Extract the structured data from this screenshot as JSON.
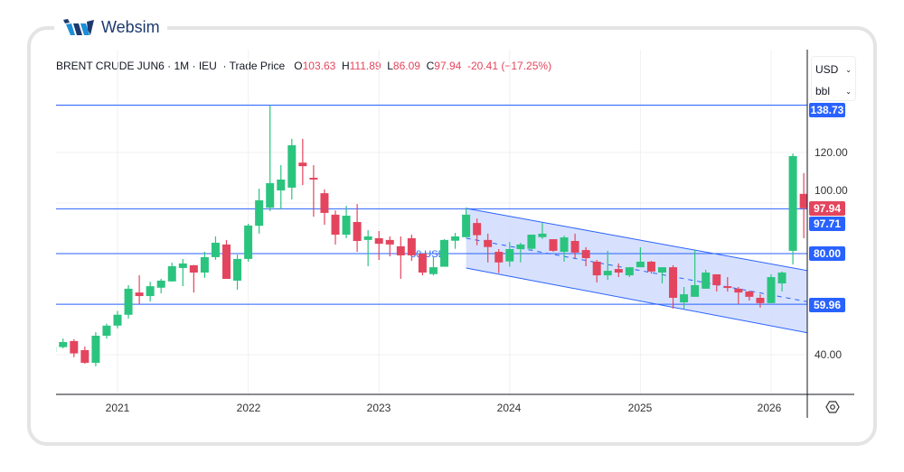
{
  "brand": {
    "name": "Websim"
  },
  "header": {
    "symbol": "BRENT CRUDE JUN6",
    "interval": "1M",
    "exchange": "IEU",
    "price_type": "Trade Price",
    "o_label": "O",
    "o": "103.63",
    "h_label": "H",
    "h": "111.89",
    "l_label": "L",
    "l": "86.09",
    "c_label": "C",
    "c": "97.94",
    "change": "-20.41",
    "change_pct": "(−17.25%)"
  },
  "units": {
    "currency": "USD",
    "unit": "bbl"
  },
  "colors": {
    "up": "#2bc47f",
    "down": "#e4455e",
    "line": "#2962ff",
    "channel_fill": "#d3defd"
  },
  "chart_data": {
    "type": "candlestick",
    "title": "BRENT CRUDE JUN6 · 1M · IEU",
    "ylim": [
      28,
      146
    ],
    "y_ticks": [
      "120.00",
      "100.00",
      "40.00"
    ],
    "x_ticks": [
      "2021",
      "2022",
      "2023",
      "2024",
      "2025",
      "2026"
    ],
    "horizontal_lines": [
      {
        "price": 138.73,
        "label": "138.73"
      },
      {
        "price": 97.71,
        "label": "97.71"
      },
      {
        "price": 80.0,
        "label": "80.00",
        "text": "80 USD"
      },
      {
        "price": 59.96,
        "label": "59.96"
      }
    ],
    "last_price": {
      "price": 97.94,
      "label": "97.94"
    },
    "channel": {
      "start": "2023-09",
      "end": "2026-04",
      "top": [
        97.9,
        73.2
      ],
      "bottom": [
        74.3,
        48.6
      ]
    },
    "candles": [
      [
        "2020-07",
        41.1,
        43.5,
        41.0,
        43.2
      ],
      [
        "2020-08",
        43.0,
        46.4,
        42.5,
        45.0
      ],
      [
        "2020-09",
        45.4,
        46.1,
        39.0,
        40.5
      ],
      [
        "2020-10",
        41.8,
        43.2,
        36.4,
        36.8
      ],
      [
        "2020-11",
        36.8,
        48.9,
        35.4,
        47.5
      ],
      [
        "2020-12",
        47.5,
        52.3,
        46.4,
        51.5
      ],
      [
        "2021-01",
        51.5,
        57.3,
        50.4,
        55.8
      ],
      [
        "2021-02",
        55.8,
        67.5,
        54.3,
        66.1
      ],
      [
        "2021-03",
        64.6,
        71.4,
        60.0,
        63.2
      ],
      [
        "2021-04",
        63.2,
        68.9,
        61.0,
        67.1
      ],
      [
        "2021-05",
        66.5,
        70.0,
        64.3,
        69.3
      ],
      [
        "2021-06",
        69.0,
        76.4,
        68.9,
        75.0
      ],
      [
        "2021-07",
        74.3,
        77.9,
        67.1,
        76.1
      ],
      [
        "2021-08",
        75.4,
        75.5,
        64.6,
        72.5
      ],
      [
        "2021-09",
        72.5,
        80.7,
        70.4,
        78.6
      ],
      [
        "2021-10",
        78.6,
        86.8,
        77.5,
        84.3
      ],
      [
        "2021-11",
        83.6,
        85.4,
        70.0,
        70.0
      ],
      [
        "2021-12",
        69.3,
        79.6,
        65.7,
        77.9
      ],
      [
        "2022-01",
        77.9,
        91.8,
        76.8,
        91.1
      ],
      [
        "2022-02",
        91.0,
        105.7,
        87.9,
        101.1
      ],
      [
        "2022-03",
        98.2,
        138.73,
        96.8,
        107.9
      ],
      [
        "2022-04",
        105.0,
        115.0,
        97.5,
        109.3
      ],
      [
        "2022-05",
        106.1,
        125.4,
        101.4,
        122.9
      ],
      [
        "2022-06",
        116.0,
        125.4,
        107.1,
        114.6
      ],
      [
        "2022-07",
        110.0,
        115.0,
        94.6,
        109.3
      ],
      [
        "2022-08",
        103.9,
        105.4,
        91.4,
        96.1
      ],
      [
        "2022-09",
        95.4,
        97.1,
        83.6,
        87.5
      ],
      [
        "2022-10",
        87.5,
        98.9,
        86.1,
        95.0
      ],
      [
        "2022-11",
        92.5,
        99.6,
        80.7,
        85.0
      ],
      [
        "2022-12",
        85.4,
        89.3,
        75.0,
        86.8
      ],
      [
        "2023-01",
        86.1,
        88.9,
        77.5,
        83.9
      ],
      [
        "2023-02",
        85.4,
        86.8,
        78.9,
        83.6
      ],
      [
        "2023-03",
        82.9,
        86.8,
        70.0,
        79.3
      ],
      [
        "2023-04",
        86.1,
        87.5,
        77.1,
        79.3
      ],
      [
        "2023-05",
        80.0,
        80.0,
        71.4,
        72.5
      ],
      [
        "2023-06",
        71.9,
        78.8,
        71.4,
        74.6
      ],
      [
        "2023-07",
        74.8,
        85.7,
        74.8,
        85.4
      ],
      [
        "2023-08",
        85.1,
        88.2,
        81.9,
        86.8
      ],
      [
        "2023-09",
        86.5,
        98.2,
        86.5,
        95.4
      ],
      [
        "2023-10",
        92.1,
        93.9,
        83.3,
        87.3
      ],
      [
        "2023-11",
        85.4,
        87.9,
        76.5,
        82.6
      ],
      [
        "2023-12",
        80.7,
        81.8,
        72.3,
        76.5
      ],
      [
        "2024-01",
        76.9,
        84.6,
        74.8,
        81.8
      ],
      [
        "2024-02",
        81.8,
        84.3,
        76.5,
        83.6
      ],
      [
        "2024-03",
        81.9,
        87.5,
        81.2,
        87.5
      ],
      [
        "2024-04",
        86.5,
        92.1,
        85.8,
        87.9
      ],
      [
        "2024-05",
        85.7,
        85.7,
        80.7,
        81.1
      ],
      [
        "2024-06",
        80.7,
        87.1,
        76.8,
        86.4
      ],
      [
        "2024-07",
        85.0,
        87.9,
        78.2,
        80.4
      ],
      [
        "2024-08",
        81.4,
        82.5,
        75.0,
        78.2
      ],
      [
        "2024-09",
        76.8,
        77.5,
        68.6,
        71.4
      ],
      [
        "2024-10",
        71.4,
        81.1,
        69.6,
        73.2
      ],
      [
        "2024-11",
        73.9,
        76.1,
        70.7,
        72.5
      ],
      [
        "2024-12",
        71.4,
        74.6,
        70.7,
        74.6
      ],
      [
        "2025-01",
        74.6,
        82.5,
        74.6,
        76.8
      ],
      [
        "2025-02",
        76.8,
        77.1,
        72.1,
        72.9
      ],
      [
        "2025-03",
        72.5,
        74.6,
        68.2,
        74.6
      ],
      [
        "2025-04",
        74.6,
        75.4,
        58.2,
        62.5
      ],
      [
        "2025-05",
        60.7,
        66.8,
        58.2,
        63.9
      ],
      [
        "2025-06",
        62.9,
        81.4,
        62.9,
        67.5
      ],
      [
        "2025-07",
        66.1,
        73.6,
        66.1,
        72.5
      ],
      [
        "2025-08",
        71.8,
        71.8,
        65.0,
        67.5
      ],
      [
        "2025-09",
        67.1,
        70.7,
        65.0,
        66.4
      ],
      [
        "2025-10",
        66.1,
        66.8,
        60.0,
        64.6
      ],
      [
        "2025-11",
        65.0,
        65.4,
        61.4,
        62.9
      ],
      [
        "2025-12",
        62.5,
        63.9,
        58.6,
        60.4
      ],
      [
        "2026-01",
        60.4,
        71.8,
        60.4,
        70.7
      ],
      [
        "2026-02",
        68.2,
        72.9,
        65.0,
        72.5
      ],
      [
        "2026-03",
        81.1,
        119.6,
        75.7,
        118.6
      ],
      [
        "2026-04",
        103.63,
        111.89,
        86.09,
        97.94
      ]
    ]
  }
}
